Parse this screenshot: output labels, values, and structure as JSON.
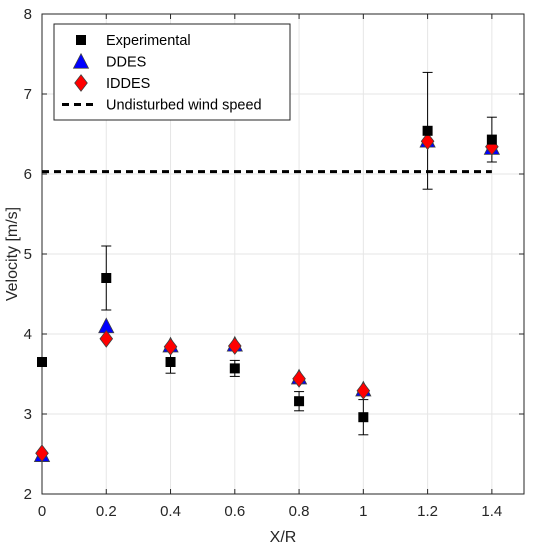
{
  "chart_data": {
    "type": "scatter",
    "title": "",
    "xlabel": "X/R",
    "ylabel": "Velocity [m/s]",
    "xlim": [
      0,
      1.5
    ],
    "ylim": [
      2,
      8
    ],
    "xticks": [
      0,
      0.2,
      0.4,
      0.6,
      0.8,
      1,
      1.2,
      1.4
    ],
    "xtick_labels": [
      "0",
      "0.2",
      "0.4",
      "0.6",
      "0.8",
      "1",
      "1.2",
      "1.4"
    ],
    "yticks": [
      2,
      3,
      4,
      5,
      6,
      7,
      8
    ],
    "ytick_labels": [
      "2",
      "3",
      "4",
      "5",
      "6",
      "7",
      "8"
    ],
    "grid": true,
    "legend_position": "top-left",
    "series": [
      {
        "name": "Experimental",
        "marker": "square",
        "color": "#000000",
        "x": [
          0,
          0.2,
          0.4,
          0.6,
          0.8,
          1.0,
          1.2,
          1.4
        ],
        "y": [
          3.65,
          4.7,
          3.65,
          3.57,
          3.16,
          2.96,
          6.54,
          6.43
        ],
        "error_low": [
          0.0,
          0.4,
          0.14,
          0.1,
          0.12,
          0.22,
          0.73,
          0.28
        ],
        "error_high": [
          0.0,
          0.4,
          0.14,
          0.1,
          0.12,
          0.22,
          0.73,
          0.28
        ]
      },
      {
        "name": "DDES",
        "marker": "triangle",
        "color": "#0000ff",
        "x": [
          0,
          0.2,
          0.4,
          0.6,
          0.8,
          1.0,
          1.2,
          1.4
        ],
        "y": [
          2.49,
          4.1,
          3.86,
          3.87,
          3.46,
          3.31,
          6.42,
          6.33
        ]
      },
      {
        "name": "IDDES",
        "marker": "diamond",
        "color": "#ff0000",
        "x": [
          0,
          0.2,
          0.4,
          0.6,
          0.8,
          1.0,
          1.2,
          1.4
        ],
        "y": [
          2.51,
          3.94,
          3.84,
          3.85,
          3.44,
          3.29,
          6.41,
          6.34
        ]
      },
      {
        "name": "Undisturbed wind speed",
        "marker": "dashed-line",
        "color": "#000000",
        "x": [
          0,
          1.4
        ],
        "y": [
          6.03,
          6.03
        ]
      }
    ]
  }
}
